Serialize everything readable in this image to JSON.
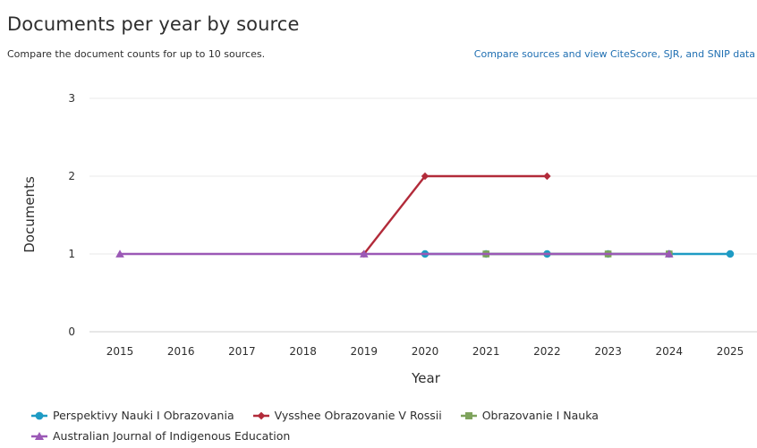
{
  "header": {
    "title": "Documents per year by source",
    "subtitle": "Compare the document counts for up to 10 sources.",
    "compare_link": "Compare sources and view CiteScore, SJR, and SNIP data"
  },
  "chart_data": {
    "type": "line",
    "xlabel": "Year",
    "ylabel": "Documents",
    "x": [
      2015,
      2016,
      2017,
      2018,
      2019,
      2020,
      2021,
      2022,
      2023,
      2024,
      2025
    ],
    "x_tick_labels": [
      "2015",
      "2016",
      "2017",
      "2018",
      "2019",
      "2020",
      "2021",
      "2022",
      "2023",
      "2024",
      "2025"
    ],
    "y_tick_labels": [
      "0",
      "1",
      "2",
      "3"
    ],
    "ylim": [
      0,
      3
    ],
    "grid": "horizontal",
    "legend_position": "bottom",
    "series": [
      {
        "name": "Perspektivy Nauki I Obrazovania",
        "color": "#1e9bc4",
        "marker": "circle",
        "x": [
          2020,
          2021,
          2022,
          2023,
          2024,
          2025
        ],
        "values": [
          1,
          1,
          1,
          1,
          1,
          1
        ]
      },
      {
        "name": "Vysshee Obrazovanie V Rossii",
        "color": "#b22b3a",
        "marker": "diamond",
        "x": [
          2019,
          2020,
          2022
        ],
        "values": [
          1,
          2,
          2
        ]
      },
      {
        "name": "Obrazovanie I Nauka",
        "color": "#7ea35c",
        "marker": "square",
        "x": [
          2021,
          2023,
          2024
        ],
        "values": [
          1,
          1,
          1
        ]
      },
      {
        "name": "Australian Journal of Indigenous Education",
        "color": "#9b59b6",
        "marker": "triangle",
        "x": [
          2015,
          2019,
          2024
        ],
        "values": [
          1,
          1,
          1
        ]
      }
    ]
  }
}
